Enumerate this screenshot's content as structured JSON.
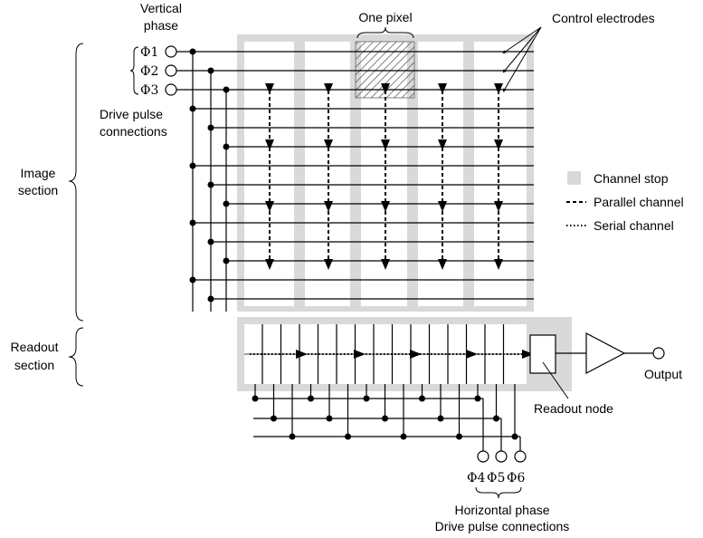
{
  "labels": {
    "vertical_phase_line1": "Vertical",
    "vertical_phase_line2": "phase",
    "one_pixel": "One pixel",
    "control_electrodes": "Control electrodes",
    "phi1": "Φ1",
    "phi2": "Φ2",
    "phi3": "Φ3",
    "drive_pulse_line1": "Drive pulse",
    "drive_pulse_line2": "connections",
    "image_section_line1": "Image",
    "image_section_line2": "section",
    "readout_section_line1": "Readout",
    "readout_section_line2": "section",
    "readout_node": "Readout node",
    "output": "Output",
    "phi4": "Φ4",
    "phi5": "Φ5",
    "phi6": "Φ6",
    "horizontal_phase_line1": "Horizontal phase",
    "horizontal_phase_line2": "Drive pulse connections"
  },
  "legend": {
    "channel_stop": "Channel stop",
    "parallel_channel": "Parallel channel",
    "serial_channel": "Serial channel"
  },
  "colors": {
    "channel_stop": "#d9d9d9",
    "line": "#000000",
    "background": "#ffffff"
  }
}
